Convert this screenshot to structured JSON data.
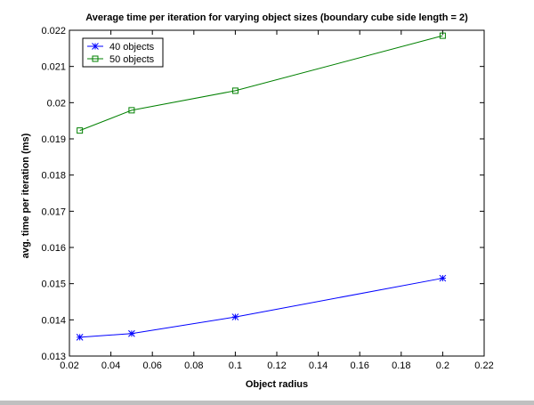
{
  "chart_data": {
    "type": "line",
    "title": "Average time per iteration for varying object sizes (boundary cube side length = 2)",
    "xlabel": "Object radius",
    "ylabel": "avg. time per iteration (ms)",
    "xlim": [
      0.02,
      0.22
    ],
    "ylim": [
      0.013,
      0.022
    ],
    "xticks": [
      "0.02",
      "0.04",
      "0.06",
      "0.08",
      "0.1",
      "0.12",
      "0.14",
      "0.16",
      "0.18",
      "0.2",
      "0.22"
    ],
    "yticks": [
      "0.013",
      "0.014",
      "0.015",
      "0.016",
      "0.017",
      "0.018",
      "0.019",
      "0.02",
      "0.021",
      "0.022"
    ],
    "grid": false,
    "legend_position": "top-left",
    "x": [
      0.025,
      0.05,
      0.1,
      0.2
    ],
    "series": [
      {
        "name": "40 objects",
        "values": [
          0.01352,
          0.01362,
          0.01408,
          0.01515
        ],
        "color": "#0000ff",
        "marker": "star"
      },
      {
        "name": "50 objects",
        "values": [
          0.01923,
          0.01979,
          0.02033,
          0.02185
        ],
        "color": "#008000",
        "marker": "square"
      }
    ]
  }
}
